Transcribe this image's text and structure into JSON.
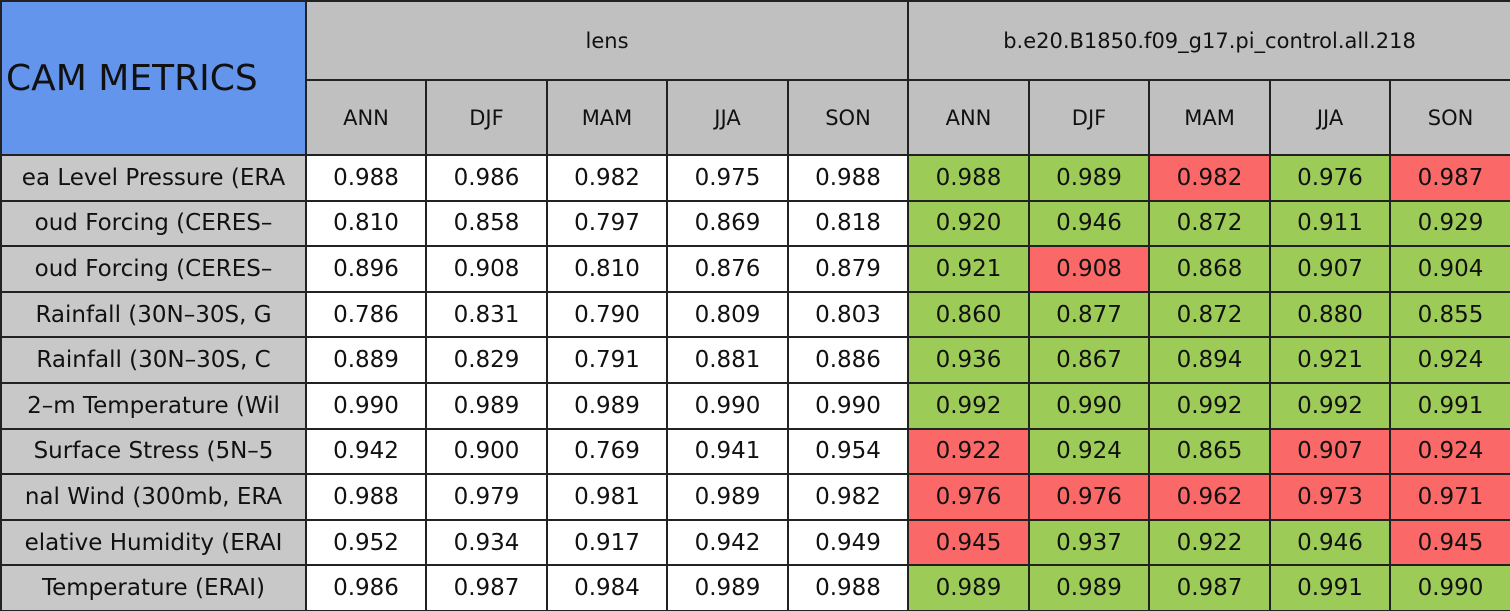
{
  "header": {
    "title": "CAM METRICS",
    "groups": [
      {
        "name": "lens",
        "columns": [
          "ANN",
          "DJF",
          "MAM",
          "JJA",
          "SON"
        ]
      },
      {
        "name": "b.e20.B1850.f09_g17.pi_control.all.218",
        "columns": [
          "ANN",
          "DJF",
          "MAM",
          "JJA",
          "SON"
        ]
      }
    ]
  },
  "colors": {
    "title": "#6495ed",
    "header": "#c0c0c0",
    "label": "#c8c8c8",
    "plain": "#ffffff",
    "good": "#9dcb57",
    "bad": "#fa6868"
  },
  "rows": [
    {
      "label": "ea Level Pressure (ERA",
      "lens": [
        "0.988",
        "0.986",
        "0.982",
        "0.975",
        "0.988"
      ],
      "control": [
        "0.988",
        "0.989",
        "0.982",
        "0.976",
        "0.987"
      ],
      "control_status": [
        "good",
        "good",
        "bad",
        "good",
        "bad"
      ]
    },
    {
      "label": "oud Forcing (CERES–",
      "lens": [
        "0.810",
        "0.858",
        "0.797",
        "0.869",
        "0.818"
      ],
      "control": [
        "0.920",
        "0.946",
        "0.872",
        "0.911",
        "0.929"
      ],
      "control_status": [
        "good",
        "good",
        "good",
        "good",
        "good"
      ]
    },
    {
      "label": "oud Forcing (CERES–",
      "lens": [
        "0.896",
        "0.908",
        "0.810",
        "0.876",
        "0.879"
      ],
      "control": [
        "0.921",
        "0.908",
        "0.868",
        "0.907",
        "0.904"
      ],
      "control_status": [
        "good",
        "bad",
        "good",
        "good",
        "good"
      ]
    },
    {
      "label": "Rainfall (30N–30S, G",
      "lens": [
        "0.786",
        "0.831",
        "0.790",
        "0.809",
        "0.803"
      ],
      "control": [
        "0.860",
        "0.877",
        "0.872",
        "0.880",
        "0.855"
      ],
      "control_status": [
        "good",
        "good",
        "good",
        "good",
        "good"
      ]
    },
    {
      "label": "Rainfall (30N–30S, C",
      "lens": [
        "0.889",
        "0.829",
        "0.791",
        "0.881",
        "0.886"
      ],
      "control": [
        "0.936",
        "0.867",
        "0.894",
        "0.921",
        "0.924"
      ],
      "control_status": [
        "good",
        "good",
        "good",
        "good",
        "good"
      ]
    },
    {
      "label": "2–m Temperature (Wil",
      "lens": [
        "0.990",
        "0.989",
        "0.989",
        "0.990",
        "0.990"
      ],
      "control": [
        "0.992",
        "0.990",
        "0.992",
        "0.992",
        "0.991"
      ],
      "control_status": [
        "good",
        "good",
        "good",
        "good",
        "good"
      ]
    },
    {
      "label": "Surface Stress (5N–5",
      "lens": [
        "0.942",
        "0.900",
        "0.769",
        "0.941",
        "0.954"
      ],
      "control": [
        "0.922",
        "0.924",
        "0.865",
        "0.907",
        "0.924"
      ],
      "control_status": [
        "bad",
        "good",
        "good",
        "bad",
        "bad"
      ]
    },
    {
      "label": "nal Wind (300mb, ERA",
      "lens": [
        "0.988",
        "0.979",
        "0.981",
        "0.989",
        "0.982"
      ],
      "control": [
        "0.976",
        "0.976",
        "0.962",
        "0.973",
        "0.971"
      ],
      "control_status": [
        "bad",
        "bad",
        "bad",
        "bad",
        "bad"
      ]
    },
    {
      "label": "elative Humidity (ERAI",
      "lens": [
        "0.952",
        "0.934",
        "0.917",
        "0.942",
        "0.949"
      ],
      "control": [
        "0.945",
        "0.937",
        "0.922",
        "0.946",
        "0.945"
      ],
      "control_status": [
        "bad",
        "good",
        "good",
        "good",
        "bad"
      ]
    },
    {
      "label": "Temperature (ERAI)",
      "lens": [
        "0.986",
        "0.987",
        "0.984",
        "0.989",
        "0.988"
      ],
      "control": [
        "0.989",
        "0.989",
        "0.987",
        "0.991",
        "0.990"
      ],
      "control_status": [
        "good",
        "good",
        "good",
        "good",
        "good"
      ]
    }
  ]
}
